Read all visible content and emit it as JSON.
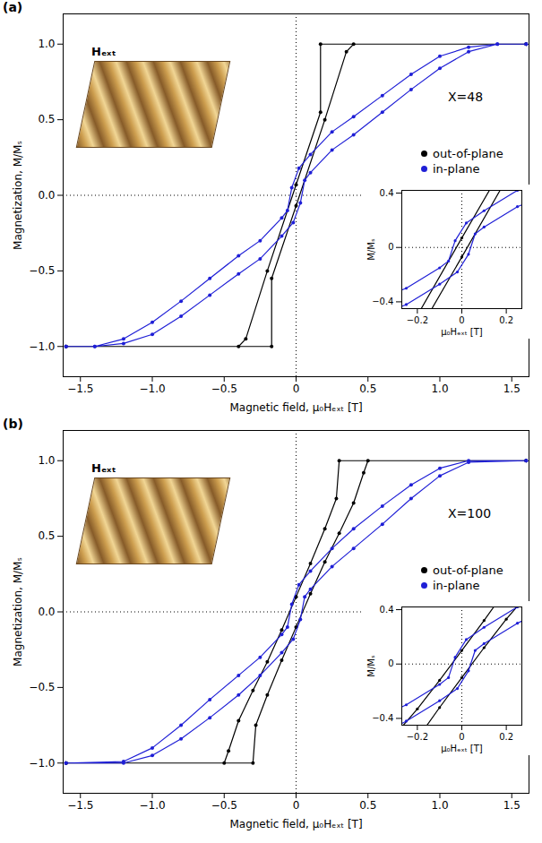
{
  "chart_data": [
    {
      "type": "line",
      "title": "(a)",
      "x_label": "Magnetic field, μ₀Hₑₓₜ [T]",
      "y_label": "Magnetization, M/Mₛ",
      "xlim": [
        -1.62,
        1.62
      ],
      "ylim": [
        -1.2,
        1.2
      ],
      "xticks": [
        {
          "value": -1.5,
          "label": "−1.5"
        },
        {
          "value": -1.0,
          "label": "−1.0"
        },
        {
          "value": -0.5,
          "label": "−0.5"
        },
        0,
        {
          "value": 0.5,
          "label": "0.5"
        },
        {
          "value": 1.0,
          "label": "1.0"
        },
        {
          "value": 1.5,
          "label": "1.5"
        }
      ],
      "yticks": [
        {
          "value": -1.0,
          "label": "−1.0"
        },
        {
          "value": -0.5,
          "label": "−0.5"
        },
        {
          "value": 0,
          "label": "0.0"
        },
        {
          "value": 0.5,
          "label": "0.5"
        },
        {
          "value": 1.0,
          "label": "1.0"
        }
      ],
      "legend": "right",
      "annotations": [
        "X=48",
        "Hₑₓₜ"
      ],
      "series": [
        {
          "name": "out-of-plane",
          "color": "#000000",
          "marker": "circle",
          "line_style": "solid",
          "x": [
            1.6,
            0.17,
            0.17,
            0,
            -0.2,
            -0.35,
            -0.4,
            -1.6,
            -1.6,
            -0.17,
            -0.17,
            0,
            0.2,
            0.35,
            0.4,
            1.6
          ],
          "values": [
            1,
            1,
            0.55,
            0.07,
            -0.5,
            -0.95,
            -1,
            -1,
            -1,
            -1,
            -0.55,
            -0.07,
            0.5,
            0.95,
            1,
            1
          ]
        },
        {
          "name": "in-plane",
          "color": "#1f1fd6",
          "marker": "circle",
          "line_style": "solid",
          "x": [
            1.6,
            1.4,
            1.2,
            1.0,
            0.8,
            0.6,
            0.4,
            0.25,
            0.1,
            0.02,
            -0.03,
            -0.06,
            -0.1,
            -0.25,
            -0.4,
            -0.6,
            -0.8,
            -1.0,
            -1.2,
            -1.4,
            -1.6,
            -1.6,
            -1.4,
            -1.2,
            -1.0,
            -0.8,
            -0.6,
            -0.4,
            -0.25,
            -0.1,
            -0.02,
            0.03,
            0.06,
            0.1,
            0.25,
            0.4,
            0.6,
            0.8,
            1.0,
            1.2,
            1.4,
            1.6
          ],
          "values": [
            1,
            1,
            0.98,
            0.92,
            0.8,
            0.66,
            0.52,
            0.42,
            0.27,
            0.18,
            0.05,
            -0.1,
            -0.15,
            -0.3,
            -0.4,
            -0.55,
            -0.7,
            -0.84,
            -0.95,
            -1,
            -1,
            -1,
            -1,
            -0.98,
            -0.92,
            -0.8,
            -0.66,
            -0.52,
            -0.42,
            -0.27,
            -0.18,
            -0.05,
            0.1,
            0.15,
            0.3,
            0.4,
            0.55,
            0.7,
            0.84,
            0.95,
            1,
            1
          ]
        }
      ],
      "inset": {
        "x_label": "μ₀Hₑₓₜ [T]",
        "y_label": "M/Mₛ",
        "xlim": [
          -0.27,
          0.27
        ],
        "ylim": [
          -0.45,
          0.42
        ],
        "xticks": [
          {
            "value": -0.2,
            "label": "−0.2"
          },
          0,
          {
            "value": 0.2,
            "label": "0.2"
          }
        ],
        "yticks": [
          {
            "value": -0.4,
            "label": "−0.4"
          },
          0,
          {
            "value": 0.4,
            "label": "0.4"
          }
        ]
      }
    },
    {
      "type": "line",
      "title": "(b)",
      "x_label": "Magnetic field, μ₀Hₑₓₜ [T]",
      "y_label": "Magnetization, M/Mₛ",
      "xlim": [
        -1.62,
        1.62
      ],
      "ylim": [
        -1.2,
        1.2
      ],
      "xticks": [
        {
          "value": -1.5,
          "label": "−1.5"
        },
        {
          "value": -1.0,
          "label": "−1.0"
        },
        {
          "value": -0.5,
          "label": "−0.5"
        },
        0,
        {
          "value": 0.5,
          "label": "0.5"
        },
        {
          "value": 1.0,
          "label": "1.0"
        },
        {
          "value": 1.5,
          "label": "1.5"
        }
      ],
      "yticks": [
        {
          "value": -1.0,
          "label": "−1.0"
        },
        {
          "value": -0.5,
          "label": "−0.5"
        },
        {
          "value": 0,
          "label": "0.0"
        },
        {
          "value": 0.5,
          "label": "0.5"
        },
        {
          "value": 1.0,
          "label": "1.0"
        }
      ],
      "legend": "right",
      "annotations": [
        "X=100",
        "Hₑₓₜ"
      ],
      "series": [
        {
          "name": "out-of-plane",
          "color": "#000000",
          "marker": "circle",
          "line_style": "solid",
          "x": [
            1.6,
            0.3,
            0.28,
            0.2,
            0.1,
            0,
            -0.1,
            -0.2,
            -0.3,
            -0.4,
            -0.47,
            -0.5,
            -1.6,
            -1.6,
            -0.3,
            -0.28,
            -0.2,
            -0.1,
            0,
            0.1,
            0.2,
            0.3,
            0.4,
            0.47,
            0.5,
            1.6
          ],
          "values": [
            1,
            1,
            0.75,
            0.55,
            0.32,
            0.1,
            -0.12,
            -0.33,
            -0.52,
            -0.72,
            -0.92,
            -1,
            -1,
            -1,
            -1,
            -0.75,
            -0.55,
            -0.32,
            -0.1,
            0.12,
            0.33,
            0.52,
            0.72,
            0.92,
            1,
            1
          ]
        },
        {
          "name": "in-plane",
          "color": "#1f1fd6",
          "marker": "circle",
          "line_style": "solid",
          "x": [
            1.6,
            1.2,
            1.0,
            0.8,
            0.6,
            0.4,
            0.25,
            0.1,
            0.02,
            -0.03,
            -0.06,
            -0.1,
            -0.25,
            -0.4,
            -0.6,
            -0.8,
            -1.0,
            -1.2,
            -1.6,
            -1.6,
            -1.2,
            -1.0,
            -0.8,
            -0.6,
            -0.4,
            -0.25,
            -0.1,
            -0.02,
            0.03,
            0.06,
            0.1,
            0.25,
            0.4,
            0.6,
            0.8,
            1.0,
            1.2,
            1.6
          ],
          "values": [
            1,
            1,
            0.95,
            0.84,
            0.7,
            0.55,
            0.42,
            0.27,
            0.18,
            0.05,
            -0.1,
            -0.15,
            -0.3,
            -0.42,
            -0.58,
            -0.75,
            -0.9,
            -0.99,
            -1,
            -1,
            -1,
            -0.95,
            -0.84,
            -0.7,
            -0.55,
            -0.42,
            -0.27,
            -0.18,
            -0.05,
            0.1,
            0.15,
            0.3,
            0.42,
            0.58,
            0.75,
            0.9,
            0.99,
            1
          ]
        }
      ],
      "inset": {
        "x_label": "μ₀Hₑₓₜ [T]",
        "y_label": "M/Mₛ",
        "xlim": [
          -0.27,
          0.27
        ],
        "ylim": [
          -0.45,
          0.42
        ],
        "xticks": [
          {
            "value": -0.2,
            "label": "−0.2"
          },
          0,
          {
            "value": 0.2,
            "label": "0.2"
          }
        ],
        "yticks": [
          {
            "value": -0.4,
            "label": "−0.4"
          },
          0,
          {
            "value": 0.4,
            "label": "0.4"
          }
        ]
      }
    }
  ]
}
